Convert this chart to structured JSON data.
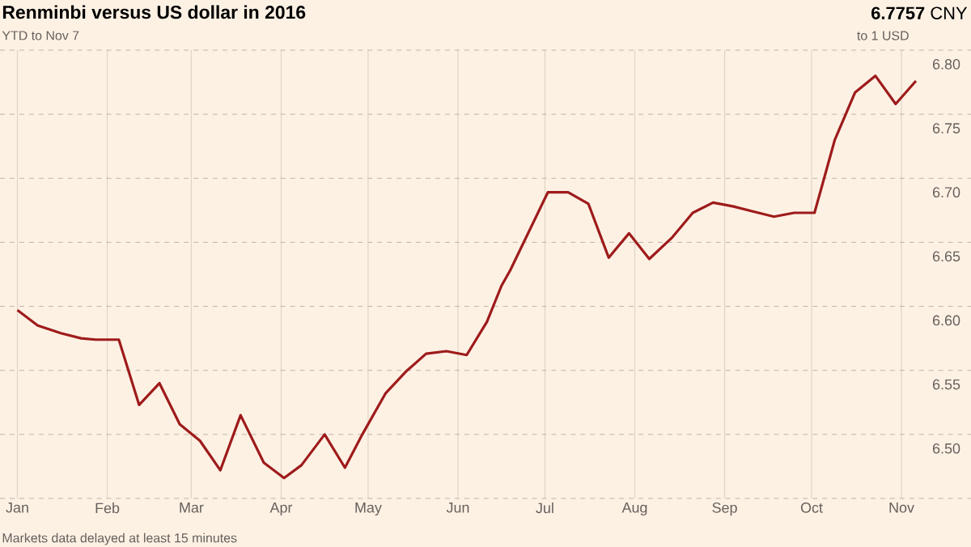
{
  "chart_data": {
    "type": "line",
    "title": "Renminbi versus US dollar in 2016",
    "subtitle": "YTD to Nov 7",
    "annotations": [
      "**6.7757** CNY",
      "to 1 USD",
      "Markets data delayed at least 15 minutes"
    ],
    "x": [
      "2016-01-01",
      "2016-01-08",
      "2016-01-16",
      "2016-01-23",
      "2016-01-28",
      "2016-02-05",
      "2016-02-12",
      "2016-02-19",
      "2016-02-26",
      "2016-03-04",
      "2016-03-11",
      "2016-03-18",
      "2016-03-26",
      "2016-04-02",
      "2016-04-08",
      "2016-04-16",
      "2016-04-23",
      "2016-04-29",
      "2016-05-07",
      "2016-05-14",
      "2016-05-21",
      "2016-05-28",
      "2016-06-04",
      "2016-06-11",
      "2016-06-16",
      "2016-06-19",
      "2016-07-02",
      "2016-07-09",
      "2016-07-16",
      "2016-07-23",
      "2016-07-30",
      "2016-08-06",
      "2016-08-14",
      "2016-08-21",
      "2016-08-28",
      "2016-09-04",
      "2016-09-11",
      "2016-09-18",
      "2016-09-25",
      "2016-10-02",
      "2016-10-09",
      "2016-10-16",
      "2016-10-23",
      "2016-10-30",
      "2016-11-06"
    ],
    "series": [
      {
        "color": "#9e1b1b",
        "values": [
          6.597,
          6.585,
          6.579,
          6.575,
          6.574,
          6.574,
          6.523,
          6.54,
          6.508,
          6.495,
          6.472,
          6.515,
          6.478,
          6.466,
          6.476,
          6.5,
          6.474,
          6.5,
          6.532,
          6.549,
          6.563,
          6.565,
          6.562,
          6.588,
          6.616,
          6.628,
          6.689,
          6.689,
          6.68,
          6.638,
          6.657,
          6.637,
          6.654,
          6.673,
          6.681,
          6.678,
          6.674,
          6.67,
          6.673,
          6.673,
          6.73,
          6.767,
          6.78,
          6.758,
          6.776
        ]
      }
    ],
    "xlim": [
      "2015-12-26",
      "2016-11-25"
    ],
    "xticks": [
      {
        "value": "2016-01-01",
        "label": "Jan"
      },
      {
        "value": "2016-02-01",
        "label": "Feb"
      },
      {
        "value": "2016-03-01",
        "label": "Mar"
      },
      {
        "value": "2016-04-01",
        "label": "Apr"
      },
      {
        "value": "2016-05-01",
        "label": "May"
      },
      {
        "value": "2016-06-01",
        "label": "Jun"
      },
      {
        "value": "2016-07-01",
        "label": "Jul"
      },
      {
        "value": "2016-08-01",
        "label": "Aug"
      },
      {
        "value": "2016-09-01",
        "label": "Sep"
      },
      {
        "value": "2016-10-01",
        "label": "Oct"
      },
      {
        "value": "2016-11-01",
        "label": "Nov"
      }
    ],
    "ylim": [
      6.45,
      6.8
    ],
    "yticks": [
      {
        "value": 6.45,
        "label": null
      },
      {
        "value": 6.5,
        "label": "6.50"
      },
      {
        "value": 6.55,
        "label": "6.55"
      },
      {
        "value": 6.6,
        "label": "6.60"
      },
      {
        "value": 6.65,
        "label": "6.65"
      },
      {
        "value": 6.7,
        "label": "6.70"
      },
      {
        "value": 6.75,
        "label": "6.75"
      },
      {
        "value": 6.8,
        "label": "6.80"
      }
    ],
    "grid": true,
    "marker": "none",
    "line_style": "solid"
  }
}
